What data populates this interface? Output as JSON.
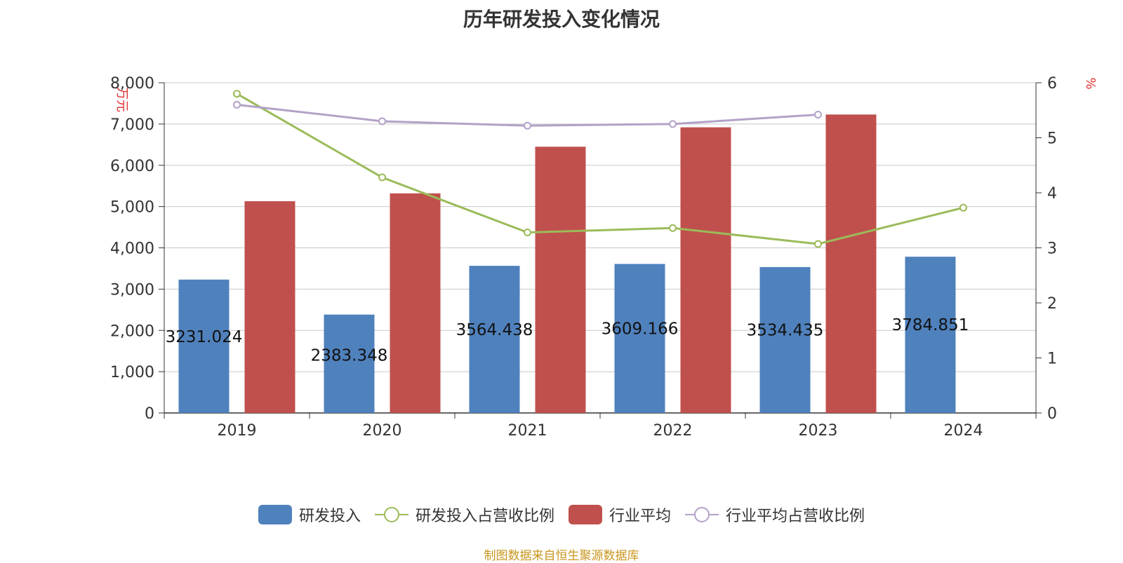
{
  "chart_data": {
    "type": "bar",
    "title": "历年研发投入变化情况",
    "categories": [
      "2019",
      "2020",
      "2021",
      "2022",
      "2023",
      "2024"
    ],
    "y_left": {
      "unit_label": "万元",
      "ticks": [
        "0",
        "1,000",
        "2,000",
        "3,000",
        "4,000",
        "5,000",
        "6,000",
        "7,000",
        "8,000"
      ],
      "ylim": [
        0,
        8000
      ]
    },
    "y_right": {
      "unit_label": "%",
      "ticks": [
        "0",
        "1",
        "2",
        "3",
        "4",
        "5",
        "6"
      ],
      "ylim": [
        0,
        6
      ]
    },
    "grid": true,
    "legend_position": "bottom",
    "series": [
      {
        "name": "研发投入",
        "type": "bar",
        "axis": "left",
        "color": "#4f81bd",
        "values": [
          3231.024,
          2383.348,
          3564.438,
          3609.166,
          3534.435,
          3784.851
        ],
        "labels": [
          "3231.024",
          "2383.348",
          "3564.438",
          "3609.166",
          "3534.435",
          "3784.851"
        ]
      },
      {
        "name": "研发投入占营收比例",
        "type": "line",
        "axis": "right",
        "color": "#9bbb59",
        "values": [
          5.8,
          4.28,
          3.28,
          3.36,
          3.07,
          3.73
        ]
      },
      {
        "name": "行业平均",
        "type": "bar",
        "axis": "left",
        "color": "#c0504d",
        "values": [
          5130,
          5320,
          6450,
          6920,
          7230,
          null
        ]
      },
      {
        "name": "行业平均占营收比例",
        "type": "line",
        "axis": "right",
        "color": "#b3a2c7",
        "values": [
          5.6,
          5.3,
          5.22,
          5.25,
          5.42,
          null
        ]
      }
    ]
  },
  "footer": {
    "source": "制图数据来自恒生聚源数据库"
  }
}
